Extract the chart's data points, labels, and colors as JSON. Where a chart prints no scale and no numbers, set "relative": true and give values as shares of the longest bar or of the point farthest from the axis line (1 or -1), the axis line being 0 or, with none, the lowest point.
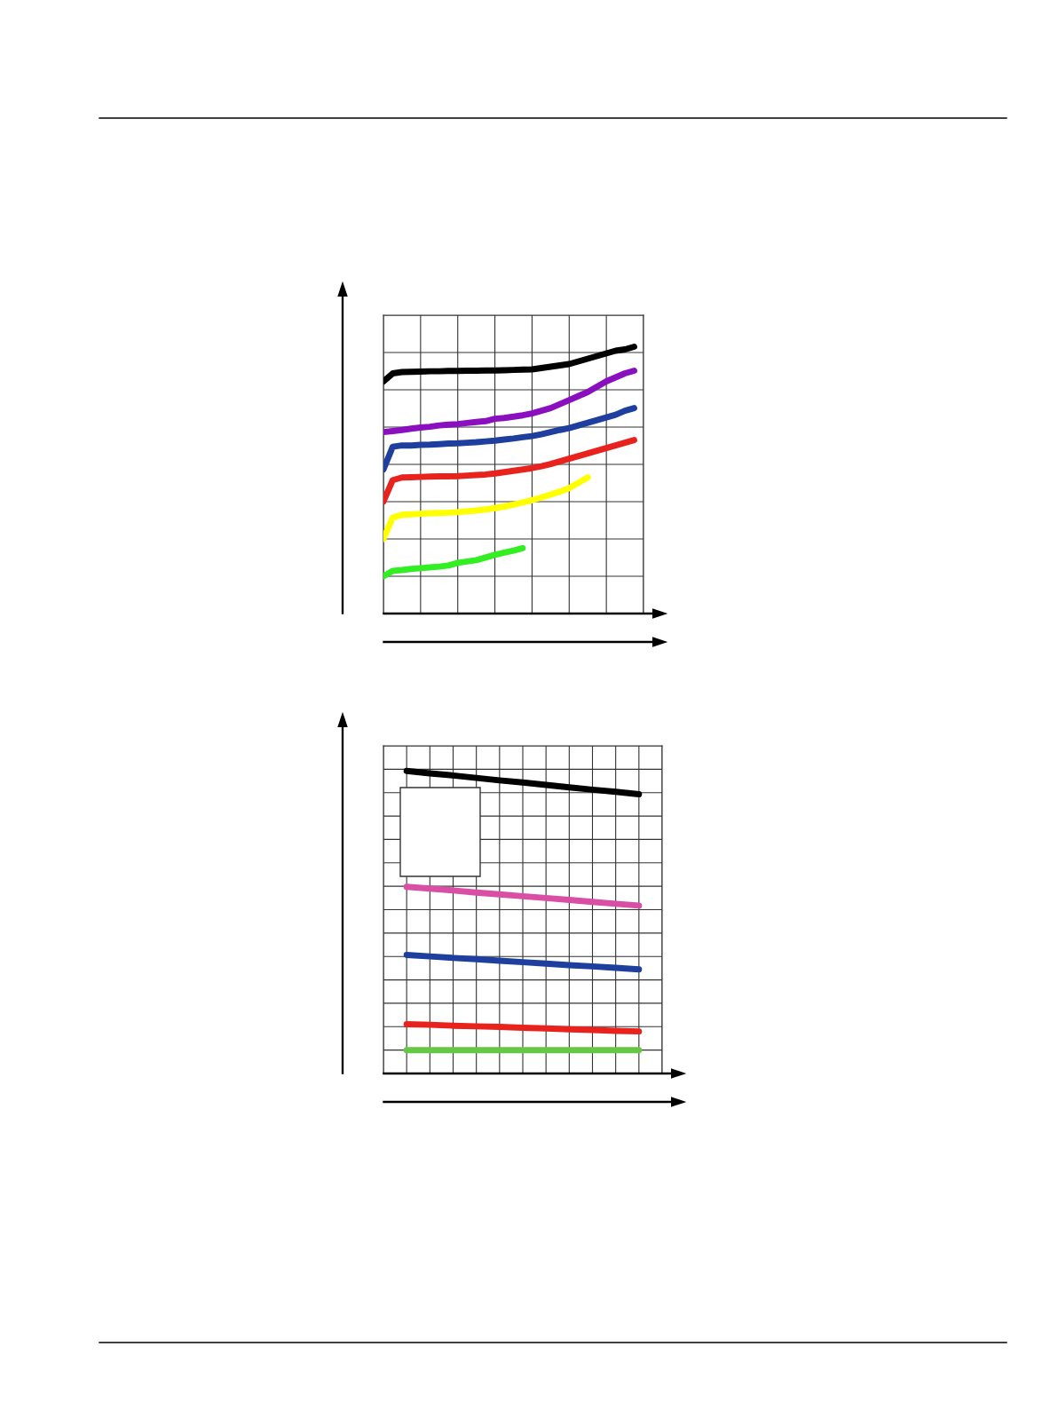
{
  "chart_data": [
    {
      "type": "line",
      "relative": true,
      "grid": true,
      "tick_labels": false,
      "marker": "none",
      "line_style": "solid",
      "categories": [
        null,
        null,
        null,
        null,
        null,
        null,
        null,
        null,
        null,
        null,
        null,
        null,
        null,
        null,
        null,
        null,
        null,
        null,
        null,
        null,
        null,
        null,
        null,
        null,
        null,
        null,
        null,
        null,
        null
      ],
      "series": [
        {
          "color": "#000000",
          "values": [
            0.87,
            0.9,
            0.905,
            0.906,
            0.907,
            0.908,
            0.908,
            0.909,
            0.909,
            0.91,
            0.91,
            0.911,
            0.911,
            0.912,
            0.913,
            0.914,
            0.915,
            0.92,
            0.925,
            0.93,
            0.935,
            0.945,
            0.955,
            0.965,
            0.975,
            0.985,
            0.99,
            1.0,
            null
          ]
        },
        {
          "color": "#8a0fbf",
          "values": [
            0.68,
            0.684,
            0.688,
            0.693,
            0.697,
            0.7,
            0.705,
            0.708,
            0.71,
            0.714,
            0.718,
            0.721,
            0.73,
            0.733,
            0.738,
            0.743,
            0.75,
            0.76,
            0.77,
            0.785,
            0.8,
            0.815,
            0.83,
            0.85,
            0.87,
            0.885,
            0.9,
            0.91,
            null
          ]
        },
        {
          "color": "#1f3f9f",
          "values": [
            0.54,
            0.625,
            0.63,
            0.63,
            0.632,
            0.633,
            0.635,
            0.637,
            0.638,
            0.64,
            0.642,
            0.645,
            0.648,
            0.652,
            0.656,
            0.661,
            0.665,
            0.672,
            0.68,
            0.688,
            0.695,
            0.705,
            0.715,
            0.725,
            0.735,
            0.745,
            0.76,
            0.77,
            null
          ]
        },
        {
          "color": "#e8231e",
          "values": [
            0.42,
            0.5,
            0.51,
            0.511,
            0.512,
            0.513,
            0.514,
            0.514,
            0.515,
            0.517,
            0.519,
            0.521,
            0.525,
            0.53,
            0.535,
            0.54,
            0.545,
            0.552,
            0.56,
            0.57,
            0.58,
            0.59,
            0.6,
            0.61,
            0.62,
            0.63,
            0.64,
            0.65,
            null
          ]
        },
        {
          "color": "#ffff00",
          "values": [
            0.28,
            0.36,
            0.37,
            0.372,
            0.374,
            0.376,
            0.377,
            0.378,
            0.38,
            0.383,
            0.386,
            0.39,
            0.395,
            0.401,
            0.408,
            0.416,
            0.425,
            0.435,
            0.446,
            0.457,
            0.47,
            0.49,
            0.51,
            null,
            null,
            null,
            null,
            null,
            null
          ]
        },
        {
          "color": "#33ee22",
          "values": [
            0.14,
            0.16,
            0.163,
            0.167,
            0.17,
            0.173,
            0.176,
            0.18,
            0.19,
            0.195,
            0.2,
            0.21,
            0.22,
            0.228,
            0.236,
            0.245,
            null,
            null,
            null,
            null,
            null,
            null,
            null,
            null,
            null,
            null,
            null,
            null,
            null
          ]
        }
      ]
    },
    {
      "type": "line",
      "relative": true,
      "grid": true,
      "tick_labels": false,
      "marker": "none",
      "line_style": "solid",
      "categories": [
        null,
        null,
        null,
        null,
        null,
        null,
        null,
        null,
        null,
        null,
        null,
        null,
        null
      ],
      "series": [
        {
          "color": "#000000",
          "values": [
            null,
            1.0,
            0.992,
            0.985,
            0.977,
            0.969,
            0.962,
            0.954,
            0.946,
            0.938,
            0.931,
            0.923,
            null
          ]
        },
        {
          "color": "#d94fa6",
          "values": [
            null,
            0.617,
            0.611,
            0.605,
            0.598,
            0.592,
            0.586,
            0.58,
            0.574,
            0.567,
            0.561,
            0.555,
            null
          ]
        },
        {
          "color": "#1f3f9f",
          "values": [
            null,
            0.392,
            0.387,
            0.382,
            0.378,
            0.373,
            0.368,
            0.363,
            0.358,
            0.354,
            0.349,
            0.344,
            null
          ]
        },
        {
          "color": "#e8231e",
          "values": [
            null,
            0.163,
            0.161,
            0.158,
            0.156,
            0.154,
            0.151,
            0.149,
            0.146,
            0.144,
            0.141,
            0.139,
            null
          ]
        },
        {
          "color": "#66c744",
          "values": [
            null,
            0.077,
            0.077,
            0.077,
            0.077,
            0.077,
            0.077,
            0.077,
            0.077,
            0.077,
            0.077,
            0.077,
            null
          ]
        }
      ]
    }
  ]
}
